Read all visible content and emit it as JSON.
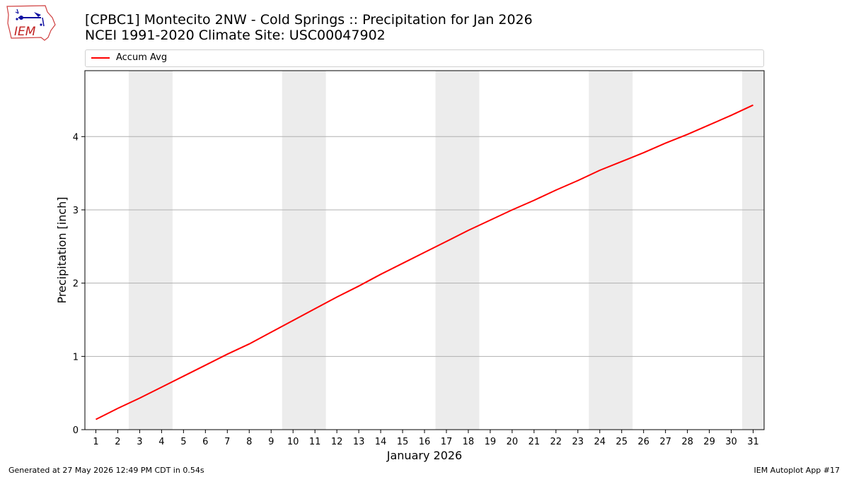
{
  "header": {
    "title_line1": "[CPBC1] Montecito 2NW - Cold Springs :: Precipitation for Jan 2026",
    "title_line2": "NCEI 1991-2020 Climate Site: USC00047902",
    "logo_text": "IEM"
  },
  "footer": {
    "left": "Generated at 27 May 2026 12:49 PM CDT in 0.54s",
    "right": "IEM Autoplot App #17"
  },
  "chart_data": {
    "type": "line",
    "xlabel": "January 2026",
    "ylabel": "Precipitation [inch]",
    "xlim": [
      0.5,
      31.5
    ],
    "ylim": [
      0,
      4.9
    ],
    "x": [
      1,
      2,
      3,
      4,
      5,
      6,
      7,
      8,
      9,
      10,
      11,
      12,
      13,
      14,
      15,
      16,
      17,
      18,
      19,
      20,
      21,
      22,
      23,
      24,
      25,
      26,
      27,
      28,
      29,
      30,
      31
    ],
    "xticks": [
      "1",
      "2",
      "3",
      "4",
      "5",
      "6",
      "7",
      "8",
      "9",
      "10",
      "11",
      "12",
      "13",
      "14",
      "15",
      "16",
      "17",
      "18",
      "19",
      "20",
      "21",
      "22",
      "23",
      "24",
      "25",
      "26",
      "27",
      "28",
      "29",
      "30",
      "31"
    ],
    "yticks": [
      0,
      1,
      2,
      3,
      4
    ],
    "ytick_labels": [
      "0",
      "1",
      "2",
      "3",
      "4"
    ],
    "grid": "horizontal",
    "weekend_shading": [
      [
        2.5,
        4.5
      ],
      [
        9.5,
        11.5
      ],
      [
        16.5,
        18.5
      ],
      [
        23.5,
        25.5
      ],
      [
        30.5,
        31.5
      ]
    ],
    "shading_color": "#ececec",
    "legend_position": "top",
    "series": [
      {
        "name": "Accum Avg",
        "color": "#ff0000",
        "values": [
          0.14,
          0.29,
          0.43,
          0.58,
          0.73,
          0.88,
          1.03,
          1.17,
          1.33,
          1.49,
          1.65,
          1.81,
          1.96,
          2.12,
          2.27,
          2.42,
          2.57,
          2.72,
          2.86,
          3.0,
          3.13,
          3.27,
          3.4,
          3.54,
          3.66,
          3.78,
          3.91,
          4.03,
          4.16,
          4.29,
          4.43
        ]
      }
    ]
  }
}
